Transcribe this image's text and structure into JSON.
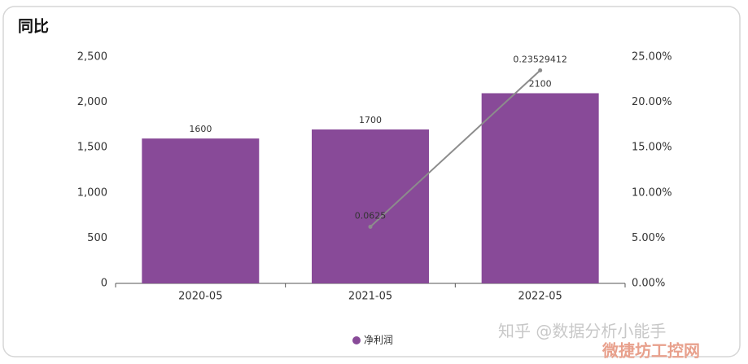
{
  "chart_data": {
    "type": "bar",
    "title": "同比",
    "categories": [
      "2020-05",
      "2021-05",
      "2022-05"
    ],
    "series": [
      {
        "name": "净利润",
        "type": "bar",
        "color": "#884a98",
        "values": [
          1600,
          1700,
          2100
        ]
      },
      {
        "type": "line",
        "axis": "y2",
        "color": "#8c8c8c",
        "values": [
          null,
          0.0625,
          0.23529412
        ]
      }
    ],
    "ylim": [
      0,
      2500
    ],
    "yticks": [
      0,
      500,
      {
        "value": 1000,
        "label": "1,000"
      },
      {
        "value": 1500,
        "label": "1,500"
      },
      {
        "value": 2000,
        "label": "2,000"
      },
      {
        "value": 2500,
        "label": "2,500"
      }
    ],
    "y2lim": [
      0,
      0.25
    ],
    "y2ticks": [
      {
        "value": 0,
        "label": "0.00%"
      },
      {
        "value": 0.05,
        "label": "5.00%"
      },
      {
        "value": 0.1,
        "label": "10.00%"
      },
      {
        "value": 0.15,
        "label": "15.00%"
      },
      {
        "value": 0.2,
        "label": "20.00%"
      },
      {
        "value": 0.25,
        "label": "25.00%"
      }
    ],
    "legend": "bottom",
    "annotations": [
      "知乎 @数据分析小能手",
      "微捷坊工控网"
    ]
  }
}
